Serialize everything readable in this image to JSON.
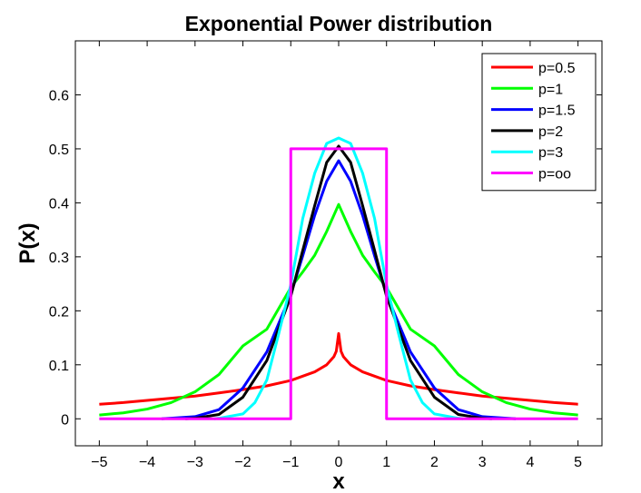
{
  "chart_data": {
    "type": "line",
    "title": "Exponential Power distribution",
    "xlabel": "x",
    "ylabel": "P(x)",
    "xlim": [
      -5.5,
      5.5
    ],
    "ylim": [
      -0.05,
      0.7
    ],
    "xticks": [
      -5,
      -4,
      -3,
      -2,
      -1,
      0,
      1,
      2,
      3,
      4,
      5
    ],
    "xtick_labels": [
      "−5",
      "−4",
      "−3",
      "−2",
      "−1",
      "0",
      "1",
      "2",
      "3",
      "4",
      "5"
    ],
    "yticks": [
      0,
      0.1,
      0.2,
      0.3,
      0.4,
      0.5,
      0.6
    ],
    "ytick_labels": [
      "0",
      "0.1",
      "0.2",
      "0.3",
      "0.4",
      "0.5",
      "0.6"
    ],
    "grid": false,
    "legend_position": "top-right",
    "series": [
      {
        "name": "p=0.5",
        "color": "#ff0000",
        "x": [
          -5,
          -4.5,
          -4,
          -3.5,
          -3,
          -2.5,
          -2,
          -1.5,
          -1,
          -0.5,
          -0.25,
          -0.1,
          -0.05,
          0,
          0.05,
          0.1,
          0.25,
          0.5,
          1,
          1.5,
          2,
          2.5,
          3,
          3.5,
          4,
          4.5,
          5
        ],
        "y": [
          0.027,
          0.03,
          0.034,
          0.038,
          0.042,
          0.048,
          0.054,
          0.061,
          0.071,
          0.087,
          0.1,
          0.115,
          0.125,
          0.158,
          0.125,
          0.115,
          0.1,
          0.087,
          0.071,
          0.061,
          0.054,
          0.048,
          0.042,
          0.038,
          0.034,
          0.03,
          0.027
        ]
      },
      {
        "name": "p=1",
        "color": "#00ff00",
        "x": [
          -5,
          -4.5,
          -4,
          -3.5,
          -3,
          -2.5,
          -2,
          -1.5,
          -1,
          -0.75,
          -0.5,
          -0.25,
          0,
          0.25,
          0.5,
          0.75,
          1,
          1.5,
          2,
          2.5,
          3,
          3.5,
          4,
          4.5,
          5
        ],
        "y": [
          0.007,
          0.011,
          0.018,
          0.03,
          0.05,
          0.082,
          0.135,
          0.166,
          0.243,
          0.272,
          0.303,
          0.347,
          0.397,
          0.347,
          0.303,
          0.272,
          0.243,
          0.166,
          0.135,
          0.082,
          0.05,
          0.03,
          0.018,
          0.011,
          0.007
        ]
      },
      {
        "name": "p=1.5",
        "color": "#0000ff",
        "x": [
          -3.7,
          -3.5,
          -3,
          -2.5,
          -2,
          -1.5,
          -1,
          -0.75,
          -0.5,
          -0.25,
          0,
          0.25,
          0.5,
          0.75,
          1,
          1.5,
          2,
          2.5,
          3,
          3.5,
          3.7
        ],
        "y": [
          0.0,
          0.001,
          0.004,
          0.017,
          0.057,
          0.124,
          0.23,
          0.302,
          0.377,
          0.44,
          0.478,
          0.44,
          0.377,
          0.302,
          0.23,
          0.124,
          0.057,
          0.017,
          0.004,
          0.001,
          0.0
        ]
      },
      {
        "name": "p=2",
        "color": "#000000",
        "x": [
          -3.2,
          -3,
          -2.5,
          -2,
          -1.5,
          -1,
          -0.75,
          -0.5,
          -0.25,
          0,
          0.25,
          0.5,
          0.75,
          1,
          1.5,
          2,
          2.5,
          3,
          3.2
        ],
        "y": [
          0.0,
          0.001,
          0.008,
          0.04,
          0.108,
          0.227,
          0.312,
          0.395,
          0.475,
          0.505,
          0.475,
          0.395,
          0.312,
          0.227,
          0.108,
          0.04,
          0.008,
          0.001,
          0.0
        ]
      },
      {
        "name": "p=3",
        "color": "#00ffff",
        "x": [
          -2.6,
          -2.5,
          -2,
          -1.75,
          -1.5,
          -1.25,
          -1,
          -0.75,
          -0.5,
          -0.25,
          0,
          0.25,
          0.5,
          0.75,
          1,
          1.25,
          1.5,
          1.75,
          2,
          2.5,
          2.6
        ],
        "y": [
          0.0,
          0.001,
          0.009,
          0.03,
          0.072,
          0.158,
          0.248,
          0.371,
          0.455,
          0.51,
          0.52,
          0.51,
          0.455,
          0.371,
          0.248,
          0.158,
          0.072,
          0.03,
          0.009,
          0.001,
          0.0
        ]
      },
      {
        "name": "p=oo",
        "color": "#ff00ff",
        "x": [
          -5,
          -1,
          -1,
          1,
          1,
          5
        ],
        "y": [
          0,
          0,
          0.5,
          0.5,
          0,
          0
        ]
      }
    ]
  }
}
